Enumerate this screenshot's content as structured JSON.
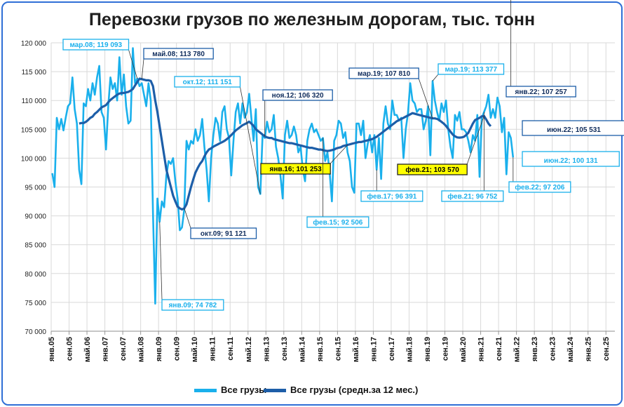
{
  "chart_data": {
    "type": "line",
    "title": "Перевозки грузов по железным дорогам, тыс. тонн",
    "ylim": [
      70000,
      120000
    ],
    "yticks": [
      "70 000",
      "75 000",
      "80 000",
      "85 000",
      "90 000",
      "95 000",
      "100 000",
      "105 000",
      "110 000",
      "115 000",
      "120 000"
    ],
    "xtick_labels": [
      "янв.05",
      "сен.05",
      "май.06",
      "янв.07",
      "сен.07",
      "май.08",
      "янв.09",
      "сен.09",
      "май.10",
      "янв.11",
      "сен.11",
      "май.12",
      "янв.13",
      "сен.13",
      "май.14",
      "янв.15",
      "сен.15",
      "май.16",
      "янв.17",
      "сен.17",
      "май.18",
      "янв.19",
      "сен.19",
      "май.20",
      "янв.21",
      "сен.21",
      "май.22",
      "янв.23",
      "сен.23",
      "май.24",
      "янв.25",
      "сен.25"
    ],
    "grid": true,
    "legend_position": "bottom",
    "colors": {
      "monthly": "#1ab0ec",
      "avg12": "#1d5ea8",
      "highlight_fill": "#ffff00"
    },
    "series": [
      {
        "name": "Все грузы",
        "values": [
          97400,
          95000,
          107000,
          105000,
          106800,
          104800,
          107000,
          109000,
          109500,
          114000,
          108500,
          106000,
          98000,
          95500,
          109500,
          109000,
          112000,
          110000,
          113000,
          111000,
          114000,
          116000,
          108000,
          107000,
          101500,
          109000,
          114000,
          112000,
          113000,
          110000,
          117500,
          111000,
          114500,
          109000,
          106000,
          106500,
          119093,
          113000,
          113780,
          112500,
          113000,
          111000,
          109000,
          113000,
          110000,
          90500,
          74782,
          93000,
          89000,
          92500,
          91500,
          97000,
          99500,
          99000,
          100000,
          96000,
          93000,
          87500,
          88000,
          91121,
          103000,
          101500,
          103000,
          102500,
          105000,
          103000,
          104000,
          106800,
          102000,
          98000,
          92500,
          100000,
          104000,
          107000,
          106000,
          103000,
          108000,
          109000,
          105000,
          103500,
          97000,
          103000,
          108000,
          109500,
          106000,
          109500,
          107000,
          108000,
          111151,
          107000,
          103000,
          108500,
          95000,
          93800,
          104000,
          103500,
          106320,
          104500,
          105000,
          107500,
          102000,
          100000,
          97000,
          93000,
          104000,
          106500,
          103500,
          104000,
          105500,
          104000,
          101000,
          102000,
          98000,
          96000,
          103000,
          105000,
          106000,
          104500,
          105000,
          104000,
          103000,
          103500,
          99500,
          101000,
          97500,
          92506,
          103000,
          104000,
          106500,
          106000,
          103500,
          104500,
          101000,
          99500,
          95000,
          94000,
          106000,
          106000,
          104000,
          106500,
          100000,
          102500,
          104000,
          101000,
          104000,
          98000,
          103500,
          96391,
          106000,
          109000,
          106000,
          105000,
          110000,
          107500,
          107500,
          106500,
          107000,
          100000,
          105000,
          107810,
          113000,
          110000,
          109500,
          108000,
          108500,
          108500,
          105000,
          106500,
          109000,
          100500,
          113377,
          110000,
          108000,
          106500,
          109500,
          108000,
          110000,
          105000,
          102000,
          100000,
          107500,
          106500,
          108000,
          105000,
          105000,
          104500,
          103000,
          101000,
          104000,
          103000,
          107500,
          96752,
          107000,
          108000,
          109000,
          111000,
          107000,
          108500,
          107000,
          110500,
          109000,
          104500,
          107000,
          97206,
          104500,
          103500,
          100131
        ]
      },
      {
        "name": "Все грузы (средн.за 12 мес.)",
        "values": [
          null,
          null,
          null,
          null,
          null,
          null,
          null,
          null,
          null,
          null,
          null,
          null,
          106000,
          106100,
          106100,
          106300,
          106600,
          107000,
          107200,
          107700,
          108000,
          108400,
          108800,
          109000,
          109200,
          109700,
          110100,
          110400,
          110700,
          111000,
          111200,
          111300,
          111300,
          111400,
          111500,
          111700,
          112000,
          112600,
          113200,
          113780,
          113700,
          113600,
          113500,
          113500,
          113400,
          112500,
          110000,
          108000,
          105500,
          103000,
          100500,
          98000,
          96500,
          95000,
          93500,
          92500,
          91600,
          91300,
          91121,
          91300,
          92000,
          93500,
          95000,
          96300,
          97500,
          98300,
          99000,
          99500,
          100300,
          101000,
          101500,
          101700,
          102000,
          102200,
          102400,
          102600,
          102800,
          103000,
          103300,
          103600,
          104000,
          104400,
          104800,
          105100,
          105400,
          105700,
          105900,
          106100,
          106320,
          106000,
          105600,
          105000,
          104700,
          104400,
          104100,
          103800,
          103600,
          103500,
          103500,
          103300,
          103200,
          103100,
          103000,
          102900,
          102800,
          102700,
          102600,
          102600,
          102500,
          102400,
          102300,
          102200,
          102100,
          102000,
          101900,
          101800,
          101800,
          101700,
          101600,
          101500,
          101500,
          101400,
          101300,
          101253,
          101300,
          101400,
          101500,
          101700,
          101800,
          101900,
          102100,
          102200,
          102300,
          102400,
          102500,
          102600,
          102700,
          102800,
          102800,
          102900,
          103000,
          103100,
          103200,
          103300,
          103500,
          103700,
          104000,
          104300,
          104600,
          104900,
          105200,
          105500,
          105800,
          106100,
          106400,
          106600,
          106800,
          107000,
          107200,
          107400,
          107600,
          107810,
          107700,
          107600,
          107500,
          107400,
          107300,
          107200,
          107100,
          107000,
          106900,
          106900,
          106800,
          106600,
          106300,
          106000,
          105600,
          105100,
          104600,
          104100,
          103800,
          103600,
          103570,
          103600,
          103700,
          104000,
          104400,
          105200,
          106000,
          106600,
          106800,
          107000,
          107257,
          107300,
          106700,
          106000,
          105531
        ]
      }
    ],
    "annotations": [
      {
        "text": "мар.08; 119 093",
        "style": "outline-light"
      },
      {
        "text": "май.08;  113 780",
        "style": "outline-dark"
      },
      {
        "text": "окт.12; 111 151",
        "style": "outline-light"
      },
      {
        "text": "ноя.12;  106 320",
        "style": "outline-dark"
      },
      {
        "text": "мар.19;  107 810",
        "style": "outline-dark"
      },
      {
        "text": "мар.19; 113 377",
        "style": "outline-light"
      },
      {
        "text": "янв.22;  107 257",
        "style": "outline-dark"
      },
      {
        "text": "июн.22;  105 531",
        "style": "big-dark"
      },
      {
        "text": "июн.22; 100 131",
        "style": "big-light"
      },
      {
        "text": "янв.16;  101 253",
        "style": "yellow"
      },
      {
        "text": "фев.21;  103 570",
        "style": "yellow"
      },
      {
        "text": "окт.09;  91 121",
        "style": "outline-dark"
      },
      {
        "text": "фев.15; 92 506",
        "style": "outline-light"
      },
      {
        "text": "фев.17; 96 391",
        "style": "outline-light"
      },
      {
        "text": "фев.21; 96 752",
        "style": "outline-light"
      },
      {
        "text": "фев.22; 97 206",
        "style": "outline-light"
      },
      {
        "text": "янв.09; 74 782",
        "style": "outline-light"
      }
    ]
  }
}
